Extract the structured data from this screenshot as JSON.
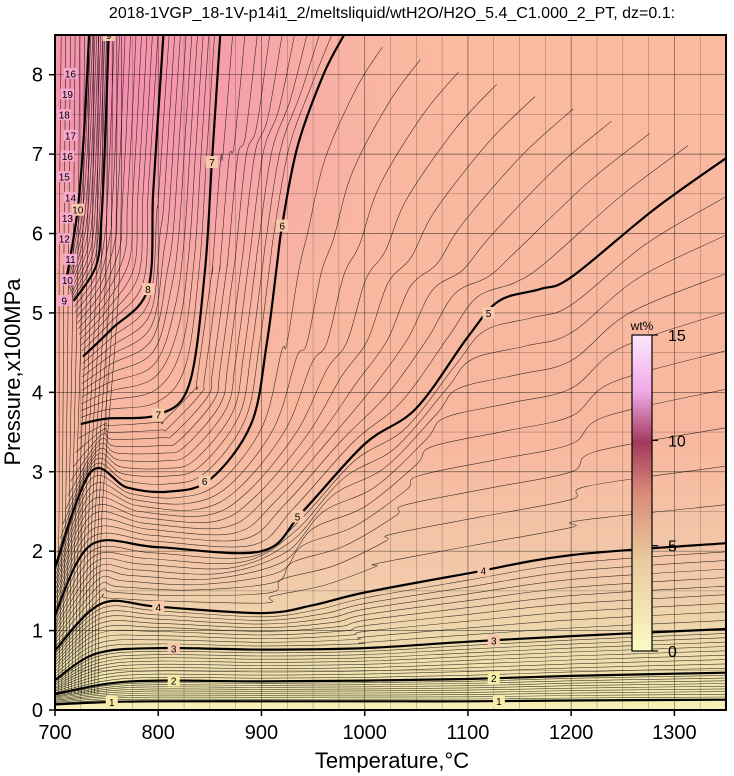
{
  "chart_data": {
    "type": "contour",
    "title": "2018-1VGP_18-1V-p14i1_2/meltsliquid/wtH2O/H2O_5.4_C1.000_2_PT, dz=0.1:",
    "xlabel": "Temperature,°C",
    "ylabel": "Pressure,x100MPa",
    "xlim": [
      700,
      1350
    ],
    "ylim": [
      0,
      8.5
    ],
    "x_ticks": [
      "700",
      "800",
      "900",
      "1000",
      "1100",
      "1200",
      "1300"
    ],
    "y_ticks": [
      "0",
      "1",
      "2",
      "3",
      "4",
      "5",
      "6",
      "7",
      "8"
    ],
    "grid": true,
    "colorbar": {
      "unit": "wt%",
      "range": [
        0,
        15
      ],
      "tick_labels": [
        "0",
        "5",
        "10",
        "15"
      ],
      "colors": [
        "#fbfbc4",
        "#e9c79c",
        "#d98a78",
        "#a33a5c",
        "#f0a8e8",
        "#fce8fc"
      ]
    },
    "labeled_contours": [
      {
        "level": 1,
        "points": [
          [
            700,
            0.07
          ],
          [
            750,
            0.1
          ],
          [
            800,
            0.11
          ],
          [
            900,
            0.11
          ],
          [
            1000,
            0.11
          ],
          [
            1100,
            0.11
          ],
          [
            1200,
            0.12
          ],
          [
            1350,
            0.13
          ]
        ]
      },
      {
        "level": 2,
        "points": [
          [
            700,
            0.2
          ],
          [
            750,
            0.33
          ],
          [
            800,
            0.37
          ],
          [
            900,
            0.36
          ],
          [
            1000,
            0.37
          ],
          [
            1100,
            0.39
          ],
          [
            1200,
            0.43
          ],
          [
            1350,
            0.47
          ]
        ]
      },
      {
        "level": 3,
        "points": [
          [
            700,
            0.38
          ],
          [
            740,
            0.71
          ],
          [
            800,
            0.78
          ],
          [
            900,
            0.76
          ],
          [
            1000,
            0.78
          ],
          [
            1100,
            0.86
          ],
          [
            1200,
            0.93
          ],
          [
            1350,
            1.02
          ]
        ]
      },
      {
        "level": 4,
        "points": [
          [
            700,
            0.75
          ],
          [
            745,
            1.34
          ],
          [
            800,
            1.3
          ],
          [
            900,
            1.22
          ],
          [
            950,
            1.32
          ],
          [
            1000,
            1.48
          ],
          [
            1100,
            1.72
          ],
          [
            1200,
            1.95
          ],
          [
            1350,
            2.1
          ]
        ]
      },
      {
        "level": 5,
        "points": [
          [
            700,
            1.2
          ],
          [
            735,
            2.08
          ],
          [
            800,
            2.05
          ],
          [
            900,
            2.0
          ],
          [
            940,
            2.5
          ],
          [
            1000,
            3.35
          ],
          [
            1050,
            3.8
          ],
          [
            1100,
            4.7
          ],
          [
            1130,
            5.15
          ],
          [
            1170,
            5.3
          ],
          [
            1200,
            5.45
          ],
          [
            1280,
            6.3
          ],
          [
            1350,
            6.95
          ]
        ]
      },
      {
        "level": 6,
        "points": [
          [
            700,
            1.8
          ],
          [
            735,
            3.0
          ],
          [
            770,
            2.8
          ],
          [
            810,
            2.75
          ],
          [
            850,
            2.9
          ],
          [
            890,
            3.6
          ],
          [
            905,
            4.6
          ],
          [
            915,
            5.6
          ],
          [
            920,
            6.1
          ],
          [
            935,
            7.1
          ],
          [
            960,
            8.0
          ],
          [
            980,
            8.5
          ]
        ]
      },
      {
        "level": 7,
        "points": [
          [
            725,
            3.6
          ],
          [
            750,
            3.67
          ],
          [
            800,
            3.72
          ],
          [
            830,
            4.1
          ],
          [
            845,
            5.5
          ],
          [
            852,
            6.9
          ],
          [
            860,
            8.5
          ]
        ]
      },
      {
        "level": 8,
        "points": [
          [
            727,
            4.45
          ],
          [
            755,
            4.8
          ],
          [
            790,
            5.3
          ],
          [
            795,
            6.5
          ],
          [
            800,
            7.5
          ],
          [
            805,
            8.5
          ]
        ]
      },
      {
        "level": 9,
        "points": [
          [
            718,
            5.15
          ],
          [
            740,
            5.6
          ],
          [
            745,
            6.2
          ],
          [
            748,
            7.0
          ],
          [
            752,
            8.5
          ]
        ]
      },
      {
        "level": 10,
        "points": [
          [
            711,
            5.42
          ],
          [
            722,
            6.3
          ],
          [
            728,
            7.25
          ],
          [
            733,
            8.5
          ]
        ]
      }
    ],
    "left_edge_labels": [
      "9",
      "10",
      "11",
      "12",
      "13",
      "14",
      "15",
      "16",
      "17",
      "18",
      "19",
      "16"
    ]
  }
}
